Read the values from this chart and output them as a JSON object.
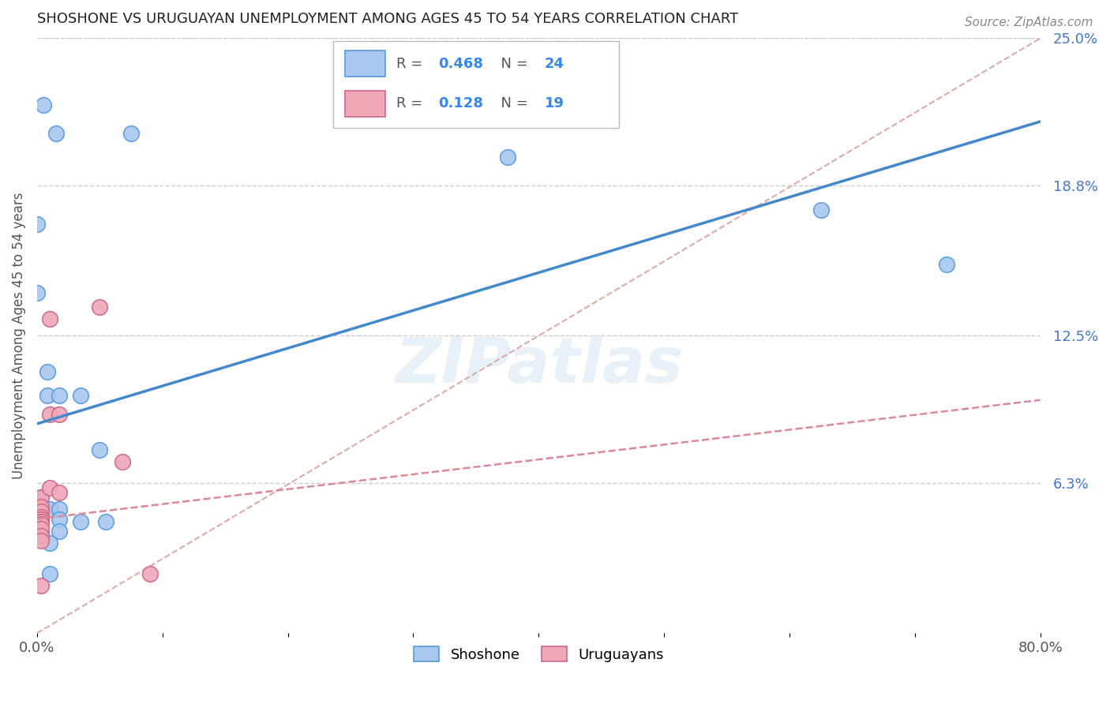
{
  "title": "SHOSHONE VS URUGUAYAN UNEMPLOYMENT AMONG AGES 45 TO 54 YEARS CORRELATION CHART",
  "source": "Source: ZipAtlas.com",
  "ylabel": "Unemployment Among Ages 45 to 54 years",
  "xlim": [
    0.0,
    0.8
  ],
  "ylim": [
    0.0,
    0.25
  ],
  "ytick_labels_right": [
    "25.0%",
    "18.8%",
    "12.5%",
    "6.3%"
  ],
  "ytick_vals_right": [
    0.25,
    0.188,
    0.125,
    0.063
  ],
  "shoshone_fill": "#a8c8f0",
  "shoshone_edge": "#5599dd",
  "uruguayan_fill": "#f0a8b8",
  "uruguayan_edge": "#cc6688",
  "shoshone_line_color": "#4488cc",
  "uruguayan_line_color": "#dd8899",
  "diagonal_color": "#cccccc",
  "legend_R_shoshone": "0.468",
  "legend_N_shoshone": "24",
  "legend_R_uruguayan": "0.128",
  "legend_N_uruguayan": "19",
  "watermark": "ZIPatlas",
  "shoshone_line_x0": 0.0,
  "shoshone_line_y0": 0.088,
  "shoshone_line_x1": 0.8,
  "shoshone_line_y1": 0.215,
  "uruguayan_line_x0": 0.0,
  "uruguayan_line_y0": 0.048,
  "uruguayan_line_x1": 0.8,
  "uruguayan_line_y1": 0.098,
  "shoshone_x": [
    0.005,
    0.015,
    0.075,
    0.0,
    0.0,
    0.008,
    0.008,
    0.018,
    0.035,
    0.003,
    0.003,
    0.01,
    0.018,
    0.035,
    0.055,
    0.375,
    0.625,
    0.725,
    0.05,
    0.018,
    0.018,
    0.01,
    0.01,
    0.003
  ],
  "shoshone_y": [
    0.222,
    0.21,
    0.21,
    0.172,
    0.143,
    0.11,
    0.1,
    0.1,
    0.1,
    0.057,
    0.052,
    0.052,
    0.052,
    0.047,
    0.047,
    0.2,
    0.178,
    0.155,
    0.077,
    0.048,
    0.043,
    0.038,
    0.025,
    0.043
  ],
  "uruguayan_x": [
    0.003,
    0.003,
    0.003,
    0.003,
    0.003,
    0.003,
    0.003,
    0.003,
    0.003,
    0.003,
    0.003,
    0.01,
    0.01,
    0.01,
    0.018,
    0.018,
    0.05,
    0.068,
    0.09
  ],
  "uruguayan_y": [
    0.057,
    0.053,
    0.051,
    0.049,
    0.048,
    0.047,
    0.046,
    0.044,
    0.041,
    0.039,
    0.02,
    0.132,
    0.092,
    0.061,
    0.059,
    0.092,
    0.137,
    0.072,
    0.025
  ]
}
